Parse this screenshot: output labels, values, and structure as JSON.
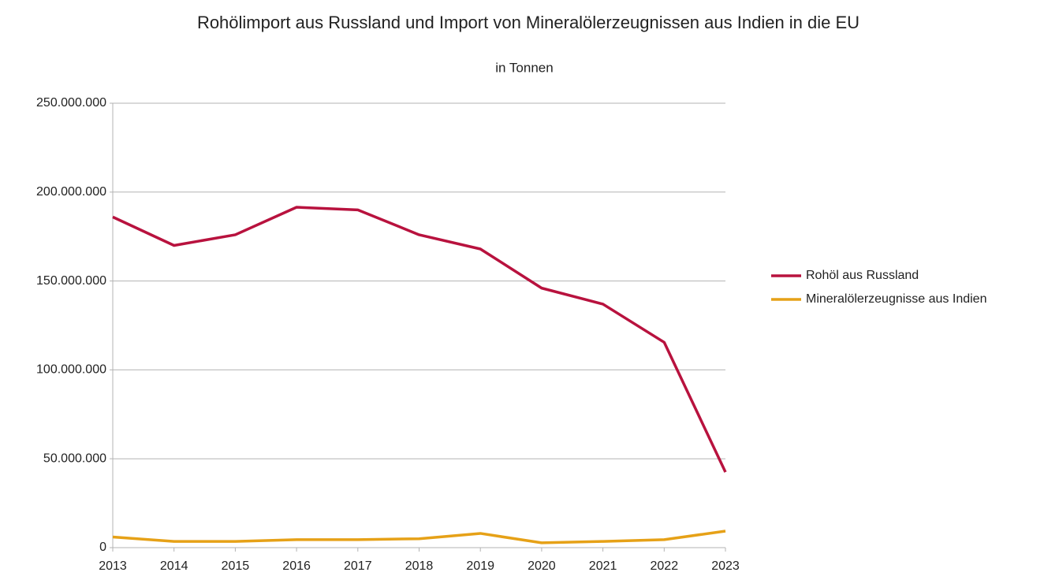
{
  "chart_data": {
    "type": "line",
    "title": "Rohölimport aus Russland und Import von Mineralölerzeugnissen aus Indien in die EU",
    "subtitle": "in Tonnen",
    "categories": [
      "2013",
      "2014",
      "2015",
      "2016",
      "2017",
      "2018",
      "2019",
      "2020",
      "2021",
      "2022",
      "2023"
    ],
    "series": [
      {
        "name": "Rohöl aus Russland",
        "color": "#b8123e",
        "values": [
          186000000,
          170000000,
          176000000,
          191500000,
          190000000,
          176000000,
          168000000,
          146000000,
          137000000,
          115500000,
          42500000
        ]
      },
      {
        "name": "Mineralölerzeugnisse aus Indien",
        "color": "#e6a117",
        "values": [
          6000000,
          3500000,
          3500000,
          4500000,
          4500000,
          5000000,
          8000000,
          2700000,
          3500000,
          4500000,
          9300000
        ]
      }
    ],
    "ylim": [
      0,
      250000000
    ],
    "yticks": [
      0,
      {
        "value": 50000000,
        "label": "50.000.000"
      },
      {
        "value": 100000000,
        "label": "100.000.000"
      },
      {
        "value": 150000000,
        "label": "150.000.000"
      },
      {
        "value": 200000000,
        "label": "200.000.000"
      },
      {
        "value": 250000000,
        "label": "250.000.000"
      }
    ],
    "grid": true,
    "legend": "right"
  }
}
